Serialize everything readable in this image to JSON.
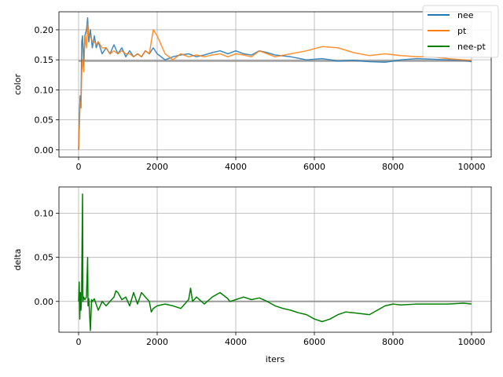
{
  "chart_data": [
    {
      "type": "line",
      "xlabel": "",
      "ylabel": "color",
      "xlim": [
        -500,
        10500
      ],
      "ylim": [
        -0.012,
        0.23
      ],
      "xticks": [
        0,
        2000,
        4000,
        6000,
        8000,
        10000
      ],
      "xtick_labels": [
        "0",
        "2000",
        "4000",
        "6000",
        "8000",
        "10000"
      ],
      "yticks": [
        0.0,
        0.05,
        0.1,
        0.15,
        0.2
      ],
      "ytick_labels": [
        "0.00",
        "0.05",
        "0.10",
        "0.15",
        "0.20"
      ],
      "grid": true,
      "reference_line": 0.148,
      "legend": {
        "position": "top-right",
        "entries": [
          "nee",
          "pt",
          "nee-pt"
        ]
      },
      "series": [
        {
          "name": "nee",
          "color": "#1f77b4",
          "x": [
            0,
            20,
            40,
            60,
            80,
            100,
            130,
            160,
            200,
            230,
            260,
            300,
            350,
            400,
            450,
            500,
            600,
            700,
            800,
            900,
            1000,
            1100,
            1200,
            1300,
            1400,
            1500,
            1600,
            1700,
            1800,
            1900,
            2000,
            2200,
            2400,
            2600,
            2800,
            3000,
            3200,
            3400,
            3600,
            3800,
            4000,
            4200,
            4400,
            4600,
            4800,
            5000,
            5400,
            5800,
            6200,
            6600,
            7000,
            7400,
            7800,
            8200,
            8600,
            9000,
            9400,
            9800,
            10000
          ],
          "y": [
            0.0,
            0.06,
            0.09,
            0.07,
            0.18,
            0.19,
            0.14,
            0.19,
            0.2,
            0.22,
            0.18,
            0.2,
            0.17,
            0.19,
            0.17,
            0.18,
            0.16,
            0.17,
            0.16,
            0.175,
            0.16,
            0.17,
            0.155,
            0.165,
            0.155,
            0.16,
            0.155,
            0.165,
            0.16,
            0.17,
            0.16,
            0.15,
            0.155,
            0.158,
            0.16,
            0.155,
            0.158,
            0.162,
            0.165,
            0.16,
            0.165,
            0.16,
            0.158,
            0.165,
            0.162,
            0.158,
            0.155,
            0.15,
            0.152,
            0.148,
            0.149,
            0.147,
            0.146,
            0.15,
            0.152,
            0.151,
            0.15,
            0.149,
            0.147
          ]
        },
        {
          "name": "pt",
          "color": "#ff7f0e",
          "x": [
            0,
            20,
            40,
            60,
            80,
            100,
            130,
            160,
            200,
            230,
            260,
            300,
            350,
            400,
            450,
            500,
            600,
            700,
            800,
            900,
            1000,
            1100,
            1200,
            1300,
            1400,
            1500,
            1600,
            1700,
            1800,
            1900,
            2000,
            2200,
            2400,
            2600,
            2800,
            3000,
            3200,
            3400,
            3600,
            3800,
            4000,
            4200,
            4400,
            4600,
            4800,
            5000,
            5400,
            5800,
            6200,
            6600,
            7000,
            7400,
            7800,
            8200,
            8600,
            9000,
            9400,
            9800,
            10000
          ],
          "y": [
            0.0,
            0.04,
            0.08,
            0.07,
            0.13,
            0.15,
            0.13,
            0.19,
            0.17,
            0.21,
            0.19,
            0.19,
            0.18,
            0.18,
            0.175,
            0.18,
            0.17,
            0.17,
            0.16,
            0.165,
            0.16,
            0.165,
            0.16,
            0.16,
            0.155,
            0.16,
            0.155,
            0.165,
            0.16,
            0.2,
            0.19,
            0.16,
            0.15,
            0.16,
            0.155,
            0.158,
            0.155,
            0.158,
            0.16,
            0.155,
            0.16,
            0.158,
            0.155,
            0.165,
            0.16,
            0.155,
            0.16,
            0.165,
            0.172,
            0.17,
            0.162,
            0.157,
            0.16,
            0.157,
            0.155,
            0.155,
            0.152,
            0.15,
            0.149
          ]
        }
      ]
    },
    {
      "type": "line",
      "xlabel": "iters",
      "ylabel": "delta",
      "xlim": [
        -500,
        10500
      ],
      "ylim": [
        -0.035,
        0.13
      ],
      "xticks": [
        0,
        2000,
        4000,
        6000,
        8000,
        10000
      ],
      "xtick_labels": [
        "0",
        "2000",
        "4000",
        "6000",
        "8000",
        "10000"
      ],
      "yticks": [
        0.0,
        0.05,
        0.1
      ],
      "ytick_labels": [
        "0.00",
        "0.05",
        "0.10"
      ],
      "grid": true,
      "reference_line": 0.0,
      "series": [
        {
          "name": "nee-pt",
          "color": "#008000",
          "x": [
            0,
            15,
            30,
            45,
            60,
            75,
            100,
            110,
            130,
            160,
            200,
            230,
            240,
            260,
            300,
            330,
            350,
            400,
            500,
            600,
            700,
            800,
            900,
            950,
            1000,
            1100,
            1200,
            1300,
            1400,
            1500,
            1600,
            1700,
            1800,
            1850,
            1900,
            2000,
            2200,
            2400,
            2600,
            2800,
            2850,
            2900,
            3000,
            3200,
            3400,
            3600,
            3800,
            3850,
            4000,
            4200,
            4400,
            4600,
            4800,
            5000,
            5200,
            5400,
            5600,
            5800,
            6000,
            6200,
            6400,
            6600,
            6800,
            7000,
            7400,
            7800,
            8000,
            8200,
            8600,
            9000,
            9400,
            9800,
            10000
          ],
          "y": [
            0.0,
            0.022,
            -0.02,
            0.01,
            -0.01,
            0.005,
            0.122,
            0.0,
            0.005,
            0.002,
            0.005,
            0.05,
            -0.005,
            0.003,
            -0.033,
            0.002,
            0.0,
            0.003,
            -0.01,
            0.0,
            -0.005,
            0.0,
            0.005,
            0.012,
            0.01,
            0.002,
            0.005,
            -0.005,
            0.01,
            -0.003,
            0.01,
            0.005,
            0.0,
            -0.012,
            -0.008,
            -0.005,
            -0.003,
            -0.005,
            -0.008,
            0.002,
            0.015,
            0.0,
            0.005,
            -0.003,
            0.005,
            0.01,
            0.003,
            0.0,
            0.002,
            0.005,
            0.002,
            0.004,
            0.0,
            -0.005,
            -0.008,
            -0.01,
            -0.013,
            -0.015,
            -0.02,
            -0.023,
            -0.02,
            -0.015,
            -0.012,
            -0.013,
            -0.015,
            -0.005,
            -0.003,
            -0.004,
            -0.003,
            -0.003,
            -0.003,
            -0.002,
            -0.003
          ]
        }
      ]
    }
  ]
}
